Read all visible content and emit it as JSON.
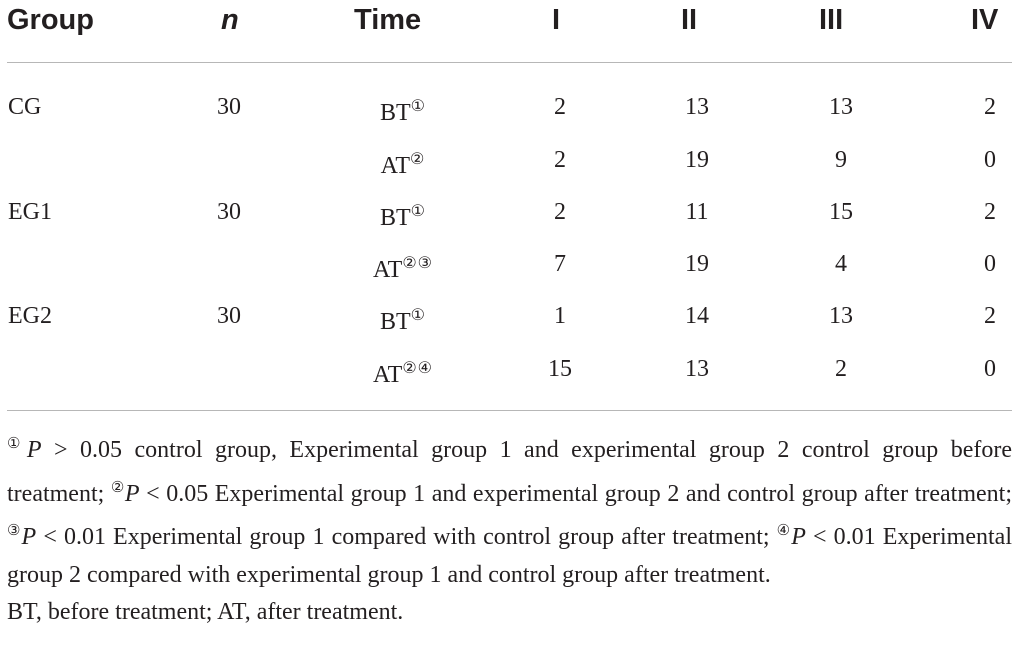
{
  "table": {
    "headers": {
      "group": "Group",
      "n": "n",
      "time": "Time",
      "c1": "I",
      "c2": "II",
      "c3": "III",
      "c4": "IV"
    },
    "rows": [
      {
        "group": "CG",
        "n": "30",
        "time": "BT",
        "time_mark": "①",
        "c1": "2",
        "c2": "13",
        "c3": "13",
        "c4": "2"
      },
      {
        "group": "",
        "n": "",
        "time": "AT",
        "time_mark": "②",
        "c1": "2",
        "c2": "19",
        "c3": "9",
        "c4": "0"
      },
      {
        "group": "EG1",
        "n": "30",
        "time": "BT",
        "time_mark": "①",
        "c1": "2",
        "c2": "11",
        "c3": "15",
        "c4": "2"
      },
      {
        "group": "",
        "n": "",
        "time": "AT",
        "time_mark": "②③",
        "c1": "7",
        "c2": "19",
        "c3": "4",
        "c4": "0"
      },
      {
        "group": "EG2",
        "n": "30",
        "time": "BT",
        "time_mark": "①",
        "c1": "1",
        "c2": "14",
        "c3": "13",
        "c4": "2"
      },
      {
        "group": "",
        "n": "",
        "time": "AT",
        "time_mark": "②④",
        "c1": "15",
        "c2": "13",
        "c3": "2",
        "c4": "0"
      }
    ]
  },
  "footnotes": {
    "n1_mark": "①",
    "n1_p": "P",
    "n1_text": " > 0.05 control group, Experimental group 1 and experimental group 2 control group before treatment; ",
    "n2_mark": "②",
    "n2_p": "P",
    "n2_text": " < 0.05 Experimental group 1 and experimental group 2 and control group after treatment; ",
    "n3_mark": "③",
    "n3_p": "P",
    "n3_text": " < 0.01 Experimental group 1 compared with control group after treatment; ",
    "n4_mark": "④",
    "n4_p": "P",
    "n4_text": " < 0.01 Experimental group 2 compared with experimental group 1 and control group after treatment.",
    "abbreviations": "BT, before treatment; AT, after treatment."
  }
}
